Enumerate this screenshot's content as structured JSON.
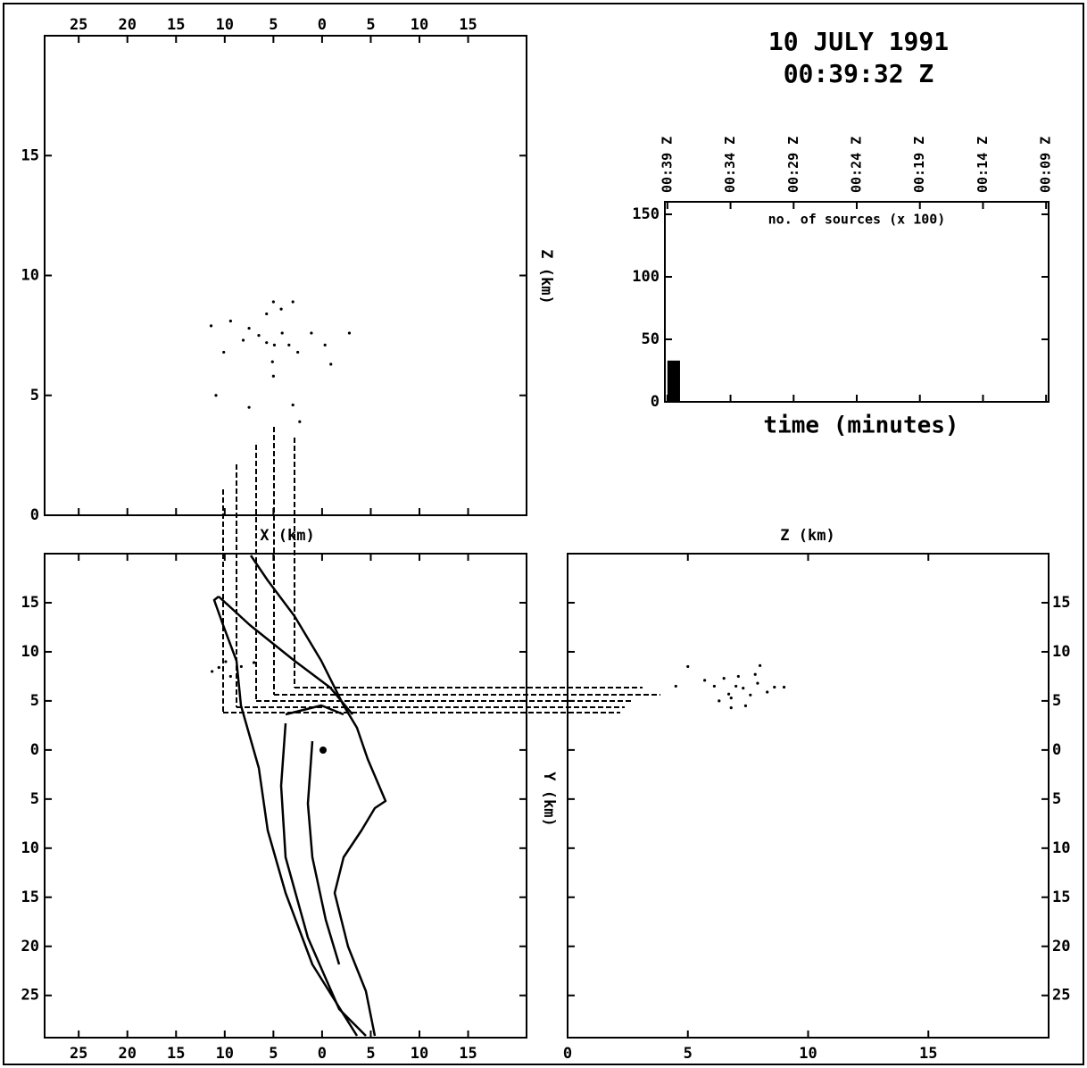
{
  "header": {
    "title": "10 JULY 1991",
    "subtitle": "00:39:32 Z"
  },
  "chart_data": [
    {
      "type": "scatter",
      "y_label": "Z (km)",
      "xlim": [
        -28.5,
        21
      ],
      "ylim": [
        0,
        20
      ],
      "xticks": [
        {
          "value": -25,
          "label": "25"
        },
        {
          "value": -20,
          "label": "20"
        },
        {
          "value": -15,
          "label": "15"
        },
        {
          "value": -10,
          "label": "10"
        },
        {
          "value": -5,
          "label": "5"
        },
        0,
        5,
        10,
        15
      ],
      "yticks": [
        0,
        5,
        10,
        15
      ],
      "series": [
        {
          "color": "#000000",
          "x": [
            -11.4,
            -9.4,
            -7.5,
            -5.7,
            -4.2,
            -5.0,
            -3.0,
            -8.1,
            -10.1,
            -6.5,
            -5.7,
            -4.9,
            -4.1,
            -3.4,
            -2.5,
            -1.1,
            0.3,
            0.9,
            2.8,
            -5.1,
            -5.0,
            -10.9,
            -7.5,
            -3.0,
            -2.3
          ],
          "values": [
            7.9,
            8.1,
            7.8,
            8.4,
            8.6,
            8.9,
            8.9,
            7.3,
            6.8,
            7.5,
            7.2,
            7.1,
            7.6,
            7.1,
            6.8,
            7.6,
            7.1,
            6.3,
            7.6,
            6.4,
            5.8,
            5.0,
            4.5,
            4.6,
            3.9
          ]
        }
      ]
    },
    {
      "type": "histogram",
      "title": "no. of sources (x 100)",
      "x_label": "time (minutes)",
      "xlim": [
        -0.2,
        30.2
      ],
      "ylim": [
        0,
        160
      ],
      "xticks": [
        {
          "value": 0,
          "label": "00:39 Z"
        },
        {
          "value": 5,
          "label": "00:34 Z"
        },
        {
          "value": 10,
          "label": "00:29 Z"
        },
        {
          "value": 15,
          "label": "00:24 Z"
        },
        {
          "value": 20,
          "label": "00:19 Z"
        },
        {
          "value": 25,
          "label": "00:14 Z"
        },
        {
          "value": 30,
          "label": "00:09 Z"
        }
      ],
      "yticks": [
        0,
        50,
        100,
        150
      ],
      "bins": [
        0,
        1
      ],
      "values": [
        33
      ],
      "color": "#000000"
    },
    {
      "type": "scatter",
      "x_label": "X (km)",
      "y_label": "Y (km)",
      "xlim": [
        -28.5,
        21
      ],
      "ylim": [
        -29.3,
        20
      ],
      "xticks": [
        {
          "value": -25,
          "label": "25"
        },
        {
          "value": -20,
          "label": "20"
        },
        {
          "value": -15,
          "label": "15"
        },
        {
          "value": -10,
          "label": "10"
        },
        {
          "value": -5,
          "label": "5"
        },
        0,
        5,
        10,
        15
      ],
      "yticks": [
        {
          "value": -25,
          "label": "25"
        },
        {
          "value": -20,
          "label": "20"
        },
        {
          "value": -15,
          "label": "15"
        },
        {
          "value": -10,
          "label": "10"
        },
        {
          "value": -5,
          "label": "5"
        },
        0,
        5,
        10,
        15
      ],
      "series": [
        {
          "color": "#000000",
          "x": [
            -11.3,
            -10.6,
            -9.9,
            -9.4,
            -8.3,
            -7.0
          ],
          "values": [
            8.0,
            8.4,
            9.0,
            7.5,
            8.5,
            8.9
          ]
        }
      ]
    },
    {
      "type": "scatter",
      "x_label": "Z (km)",
      "xlim": [
        0,
        20
      ],
      "ylim": [
        -29.3,
        20
      ],
      "xticks": [
        0,
        5,
        10,
        15
      ],
      "yticks": [
        {
          "value": -25,
          "label": "25"
        },
        {
          "value": -20,
          "label": "20"
        },
        {
          "value": -15,
          "label": "15"
        },
        {
          "value": -10,
          "label": "10"
        },
        {
          "value": -5,
          "label": "5"
        },
        0,
        5,
        10,
        15
      ],
      "series": [
        {
          "color": "#000000",
          "x": [
            4.5,
            5.0,
            5.7,
            6.1,
            6.5,
            6.7,
            6.8,
            7.0,
            7.1,
            7.3,
            7.6,
            7.8,
            8.0,
            7.9,
            8.3,
            8.6,
            9.0,
            6.8,
            7.4,
            6.3
          ],
          "values": [
            6.5,
            8.5,
            7.1,
            6.5,
            7.3,
            5.7,
            5.3,
            6.5,
            7.5,
            6.3,
            5.6,
            7.7,
            8.6,
            6.8,
            5.9,
            6.4,
            6.4,
            4.3,
            4.5,
            5.0
          ]
        }
      ]
    }
  ]
}
